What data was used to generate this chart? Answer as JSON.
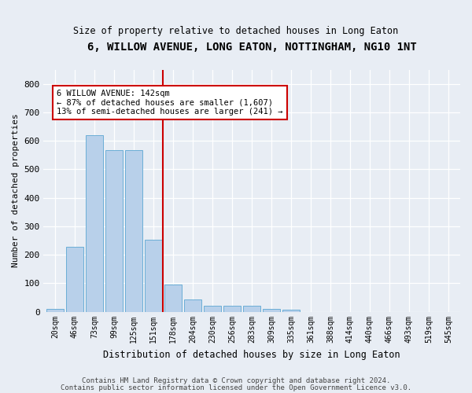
{
  "title": "6, WILLOW AVENUE, LONG EATON, NOTTINGHAM, NG10 1NT",
  "subtitle": "Size of property relative to detached houses in Long Eaton",
  "xlabel": "Distribution of detached houses by size in Long Eaton",
  "ylabel": "Number of detached properties",
  "categories": [
    "20sqm",
    "46sqm",
    "73sqm",
    "99sqm",
    "125sqm",
    "151sqm",
    "178sqm",
    "204sqm",
    "230sqm",
    "256sqm",
    "283sqm",
    "309sqm",
    "335sqm",
    "361sqm",
    "388sqm",
    "414sqm",
    "440sqm",
    "466sqm",
    "493sqm",
    "519sqm",
    "545sqm"
  ],
  "values": [
    10,
    228,
    619,
    568,
    567,
    253,
    96,
    44,
    20,
    20,
    20,
    10,
    7,
    0,
    0,
    0,
    0,
    0,
    0,
    0,
    0
  ],
  "bar_color": "#b8d0ea",
  "bar_edge_color": "#6baed6",
  "vline_x": 5.5,
  "vline_color": "#cc0000",
  "annotation_text": "6 WILLOW AVENUE: 142sqm\n← 87% of detached houses are smaller (1,607)\n13% of semi-detached houses are larger (241) →",
  "annotation_box_color": "#ffffff",
  "annotation_box_edge": "#cc0000",
  "ylim": [
    0,
    850
  ],
  "yticks": [
    0,
    100,
    200,
    300,
    400,
    500,
    600,
    700,
    800
  ],
  "bg_color": "#e8edf4",
  "plot_bg_color": "#e8edf4",
  "footer1": "Contains HM Land Registry data © Crown copyright and database right 2024.",
  "footer2": "Contains public sector information licensed under the Open Government Licence v3.0."
}
